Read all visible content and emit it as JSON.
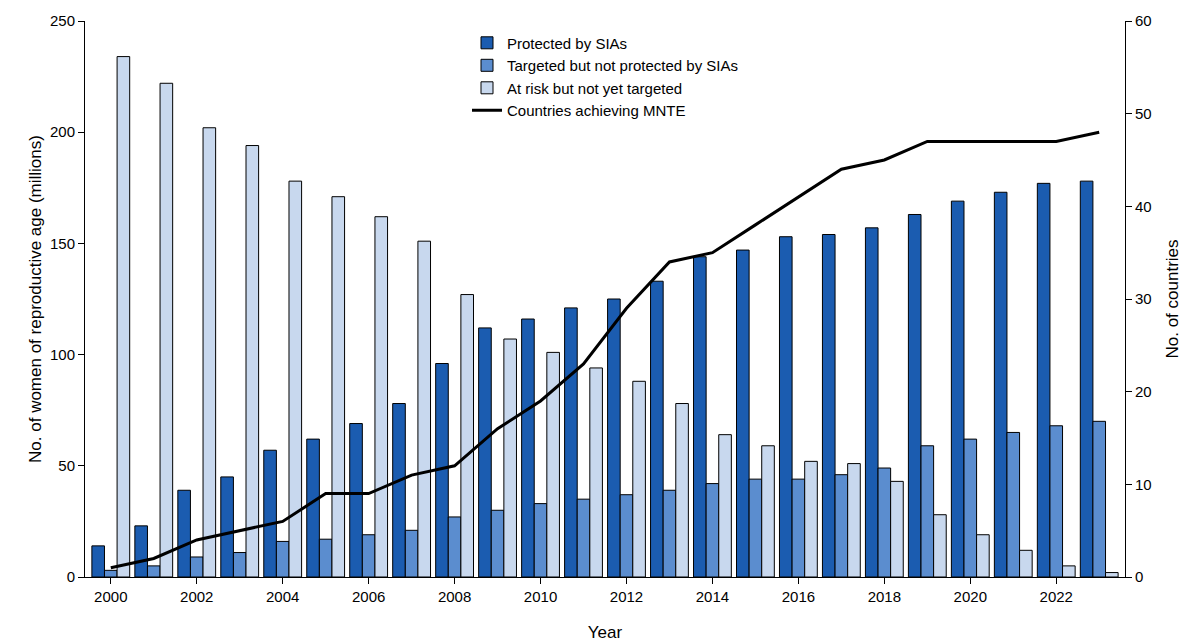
{
  "chart_data": {
    "type": "bar",
    "x_label": "Year",
    "y_label": "No. of women of reproductive age (millions)",
    "y2_label": "No. of countries",
    "x": [
      2000,
      2001,
      2002,
      2003,
      2004,
      2005,
      2006,
      2007,
      2008,
      2009,
      2010,
      2011,
      2012,
      2013,
      2014,
      2015,
      2016,
      2017,
      2018,
      2019,
      2020,
      2021,
      2022,
      2023
    ],
    "xlim": [
      1999.4,
      2023.6
    ],
    "xticks": [
      2000,
      2002,
      2004,
      2006,
      2008,
      2010,
      2012,
      2014,
      2016,
      2018,
      2020,
      2022
    ],
    "ylim": [
      0,
      250
    ],
    "yticks": [
      0,
      50,
      100,
      150,
      200,
      250
    ],
    "y2lim": [
      0,
      60
    ],
    "y2ticks": [
      0,
      10,
      20,
      30,
      40,
      50,
      60
    ],
    "grid": false,
    "legend": "top",
    "series": [
      {
        "name": "Protected by SIAs",
        "color": "#1b5cb0",
        "values": [
          14,
          23,
          39,
          45,
          57,
          62,
          69,
          78,
          96,
          112,
          116,
          121,
          125,
          133,
          144,
          147,
          153,
          154,
          157,
          163,
          169,
          173,
          177,
          178
        ]
      },
      {
        "name": "Targeted but not protected by SIAs",
        "color": "#5b8dcf",
        "values": [
          3,
          5,
          9,
          11,
          16,
          17,
          19,
          21,
          27,
          30,
          33,
          35,
          37,
          39,
          42,
          44,
          44,
          46,
          49,
          59,
          62,
          65,
          68,
          70
        ]
      },
      {
        "name": "At risk but not yet targeted",
        "color": "#c8d8ee",
        "values": [
          234,
          222,
          202,
          194,
          178,
          171,
          162,
          151,
          127,
          107,
          101,
          94,
          88,
          78,
          64,
          59,
          52,
          51,
          43,
          28,
          19,
          12,
          5,
          2
        ]
      },
      {
        "name": "Countries achieving MNTE",
        "color": "#000000",
        "type": "line",
        "axis": "y2",
        "values": [
          1,
          2,
          4,
          5,
          6,
          9,
          9,
          11,
          12,
          16,
          19,
          23,
          29,
          34,
          35,
          38,
          41,
          44,
          45,
          47,
          47,
          47,
          47,
          48
        ]
      }
    ]
  }
}
